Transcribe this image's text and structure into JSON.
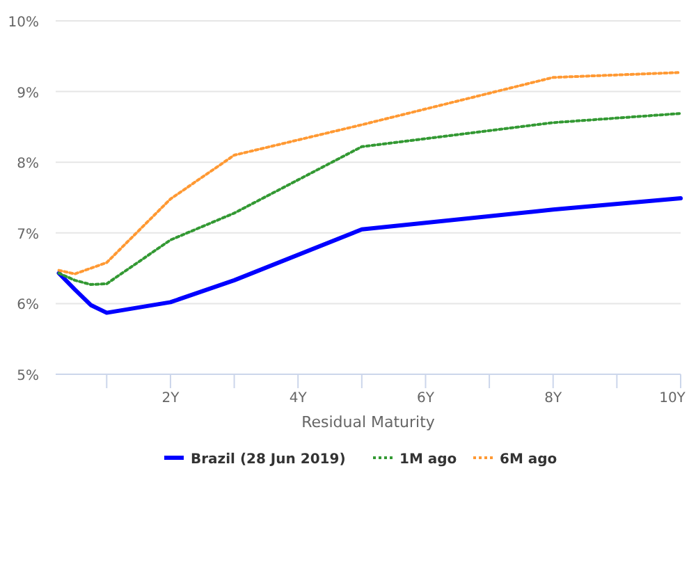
{
  "chart_data": {
    "type": "line",
    "xlabel": "Residual Maturity",
    "xlim": [
      0.2,
      10
    ],
    "xticks": [
      {
        "value": 1,
        "label": null
      },
      {
        "value": 2,
        "label": "2Y"
      },
      {
        "value": 3,
        "label": null
      },
      {
        "value": 4,
        "label": "4Y"
      },
      {
        "value": 5,
        "label": null
      },
      {
        "value": 6,
        "label": "6Y"
      },
      {
        "value": 7,
        "label": null
      },
      {
        "value": 8,
        "label": "8Y"
      },
      {
        "value": 9,
        "label": null
      },
      {
        "value": 10,
        "label": "10Y"
      }
    ],
    "ylim": [
      5,
      10
    ],
    "yticks": [
      {
        "value": 5,
        "label": "5%"
      },
      {
        "value": 6,
        "label": "6%"
      },
      {
        "value": 7,
        "label": "7%"
      },
      {
        "value": 8,
        "label": "8%"
      },
      {
        "value": 9,
        "label": "9%"
      },
      {
        "value": 10,
        "label": "10%"
      }
    ],
    "grid": "y",
    "legend": "bottom",
    "marker": "none",
    "series": [
      {
        "name": "Brazil (28 Jun 2019)",
        "color": "#0000ff",
        "line_style": "solid",
        "x": [
          0.25,
          0.5,
          0.75,
          1,
          2,
          3,
          5,
          8,
          10
        ],
        "values": [
          6.43,
          6.2,
          5.98,
          5.87,
          6.02,
          6.33,
          7.05,
          7.33,
          7.49
        ]
      },
      {
        "name": "1M ago",
        "color": "#339933",
        "line_style": "dotted",
        "x": [
          0.25,
          0.5,
          0.75,
          1,
          2,
          3,
          5,
          8,
          10
        ],
        "values": [
          6.43,
          6.33,
          6.27,
          6.28,
          6.9,
          7.28,
          8.22,
          8.56,
          8.69
        ]
      },
      {
        "name": "6M ago",
        "color": "#ff9933",
        "line_style": "dotted",
        "x": [
          0.25,
          0.5,
          1,
          2,
          3,
          5,
          8,
          10
        ],
        "values": [
          6.47,
          6.42,
          6.58,
          7.48,
          8.1,
          8.53,
          9.2,
          9.27
        ]
      }
    ]
  }
}
